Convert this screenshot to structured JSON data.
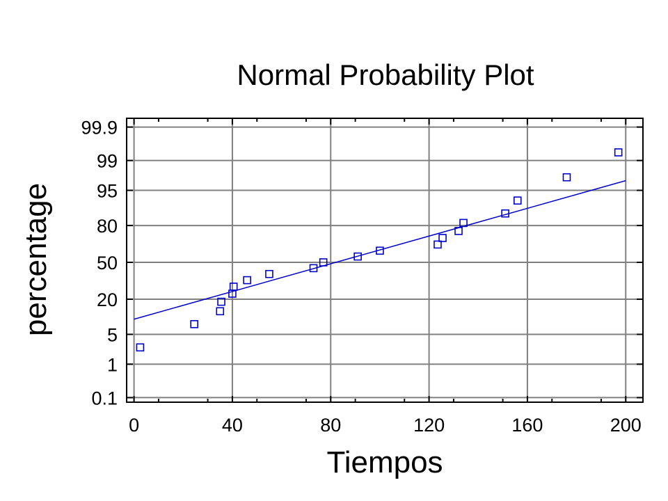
{
  "chart_data": {
    "type": "scatter",
    "title": "Normal Probability Plot",
    "xlabel": "Tiempos",
    "ylabel": "percentage",
    "xlim": [
      -3,
      207
    ],
    "xticks": [
      "0",
      "40",
      "80",
      "120",
      "160",
      "200"
    ],
    "xtick_values": [
      0,
      40,
      80,
      120,
      160,
      200
    ],
    "yscale": "normal-probability",
    "yticks": [
      "0.1",
      "1",
      "5",
      "20",
      "50",
      "80",
      "95",
      "99",
      "99.9"
    ],
    "ytick_values": [
      0.1,
      1,
      5,
      20,
      50,
      80,
      95,
      99,
      99.9
    ],
    "ylim": [
      0.07,
      99.95
    ],
    "grid": true,
    "points": [
      {
        "x": 2.5,
        "y": 2.6
      },
      {
        "x": 24.5,
        "y": 7.9
      },
      {
        "x": 35,
        "y": 13.2
      },
      {
        "x": 35.5,
        "y": 18.4
      },
      {
        "x": 40,
        "y": 23.7
      },
      {
        "x": 40.5,
        "y": 28.9
      },
      {
        "x": 46,
        "y": 34.2
      },
      {
        "x": 55,
        "y": 39.5
      },
      {
        "x": 73,
        "y": 44.7
      },
      {
        "x": 77,
        "y": 50
      },
      {
        "x": 91,
        "y": 55.3
      },
      {
        "x": 100,
        "y": 60.5
      },
      {
        "x": 123.5,
        "y": 65.8
      },
      {
        "x": 125.5,
        "y": 71.1
      },
      {
        "x": 132,
        "y": 76.3
      },
      {
        "x": 134,
        "y": 81.6
      },
      {
        "x": 151,
        "y": 86.8
      },
      {
        "x": 156,
        "y": 92.1
      },
      {
        "x": 176,
        "y": 97.4
      },
      {
        "x": 197,
        "y": 99.4
      }
    ],
    "fit_line": {
      "x": [
        0,
        200
      ],
      "y": [
        9.7,
        96.9
      ]
    },
    "colors": {
      "points": "#0000cc",
      "fit_line": "#0000cc",
      "grid": "#808080",
      "frame": "#000000"
    }
  }
}
